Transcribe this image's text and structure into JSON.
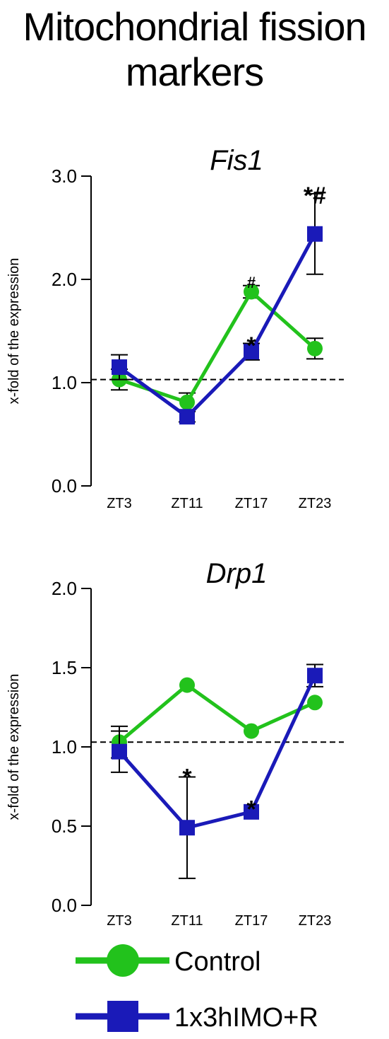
{
  "figure": {
    "title_line1": "Mitochondrial fission",
    "title_line2": "markers"
  },
  "colors": {
    "control": "#22c21c",
    "treatment": "#1a1ab8",
    "axis": "#000000",
    "reference_line": "#000000"
  },
  "legend": {
    "placement": "bottom-center",
    "entries": [
      {
        "label": "Control",
        "marker": "circle",
        "color": "#22c21c"
      },
      {
        "label": "1x3hIMO+R",
        "marker": "square",
        "color": "#1a1ab8"
      }
    ]
  },
  "chart_data": [
    {
      "type": "line",
      "title": "Fis1",
      "xlabel": "",
      "ylabel": "x-fold of the expression",
      "categories": [
        "ZT3",
        "ZT11",
        "ZT17",
        "ZT23"
      ],
      "ylim": [
        0,
        3
      ],
      "yticks": [
        0,
        1,
        2,
        3
      ],
      "ytick_labels": [
        "0.0",
        "1.0",
        "2.0",
        "3.0"
      ],
      "reference_line": 1.03,
      "grid": false,
      "series": [
        {
          "name": "Control",
          "marker": "circle",
          "color": "#22c21c",
          "values": [
            1.03,
            0.81,
            1.88,
            1.33
          ],
          "errors": [
            0.1,
            0.09,
            0.06,
            0.1
          ]
        },
        {
          "name": "1x3hIMO+R",
          "marker": "square",
          "color": "#1a1ab8",
          "values": [
            1.15,
            0.67,
            1.3,
            2.44
          ],
          "errors": [
            0.12,
            0.05,
            0.08,
            0.39
          ]
        }
      ],
      "annotations": [
        {
          "text": "#",
          "category": "ZT17",
          "y": 2.0,
          "size": 22
        },
        {
          "text": "*",
          "category": "ZT17",
          "y": 1.41,
          "size": 34
        },
        {
          "text": "*#",
          "category": "ZT23",
          "y": 2.86,
          "size": 34
        }
      ]
    },
    {
      "type": "line",
      "title": "Drp1",
      "xlabel": "",
      "ylabel": "x-fold of the expression",
      "categories": [
        "ZT3",
        "ZT11",
        "ZT17",
        "ZT23"
      ],
      "ylim": [
        0,
        2
      ],
      "yticks": [
        0,
        0.5,
        1,
        1.5,
        2
      ],
      "ytick_labels": [
        "0.0",
        "0.5",
        "1.0",
        "1.5",
        "2.0"
      ],
      "reference_line": 1.03,
      "grid": false,
      "series": [
        {
          "name": "Control",
          "marker": "circle",
          "color": "#22c21c",
          "values": [
            1.03,
            1.39,
            1.1,
            1.28
          ],
          "errors": [
            0.1,
            0.0,
            0.0,
            0.0
          ]
        },
        {
          "name": "1x3hIMO+R",
          "marker": "square",
          "color": "#1a1ab8",
          "values": [
            0.97,
            0.49,
            0.59,
            1.45
          ],
          "errors": [
            0.13,
            0.32,
            0.0,
            0.07
          ]
        }
      ],
      "annotations": [
        {
          "text": "*",
          "category": "ZT11",
          "y": 0.84,
          "size": 34
        },
        {
          "text": "*",
          "category": "ZT17",
          "y": 0.64,
          "size": 34
        }
      ]
    }
  ]
}
